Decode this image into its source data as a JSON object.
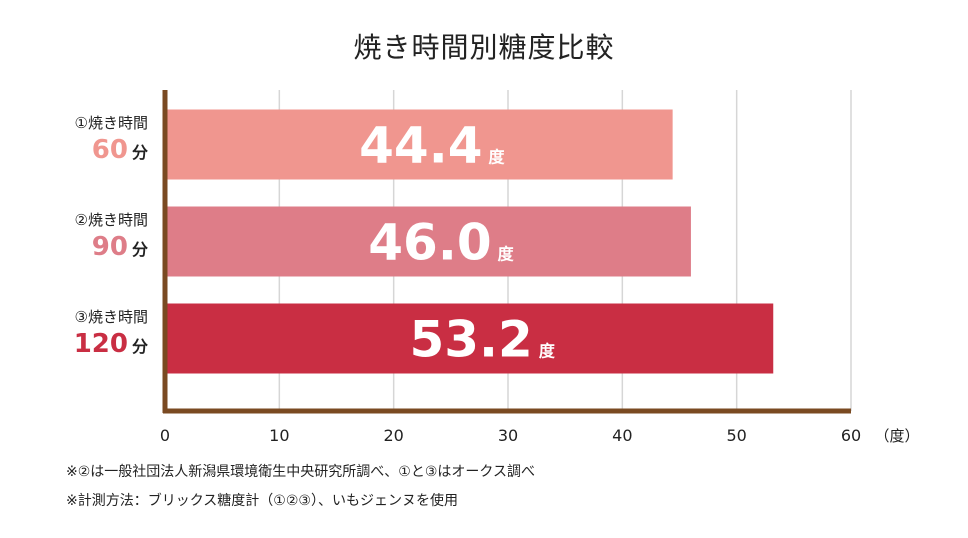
{
  "chart_data": {
    "type": "bar",
    "orientation": "horizontal",
    "title": "焼き時間別糖度比較",
    "categories": [
      {
        "line1": "①焼き時間",
        "number": "60",
        "unit": "分"
      },
      {
        "line1": "②焼き時間",
        "number": "90",
        "unit": "分"
      },
      {
        "line1": "③焼き時間",
        "number": "120",
        "unit": "分"
      }
    ],
    "values": [
      44.4,
      46.0,
      53.2
    ],
    "value_labels": [
      "44.4",
      "46.0",
      "53.2"
    ],
    "value_unit": "度",
    "colors": [
      "#F0968F",
      "#DE7D88",
      "#C92E43"
    ],
    "xlim": [
      0,
      60
    ],
    "xticks": [
      0,
      10,
      20,
      30,
      40,
      50,
      60
    ],
    "xlabel": "（度）",
    "grid": true,
    "axis_color": "#7A4A22",
    "grid_color": "#D6D6D6"
  },
  "notes": [
    "※②は一般社団法人新潟県環境衛生中央研究所調べ、①と③はオークス調べ",
    "※計測方法：ブリックス糖度計（①②③）、いもジェンヌを使用"
  ]
}
